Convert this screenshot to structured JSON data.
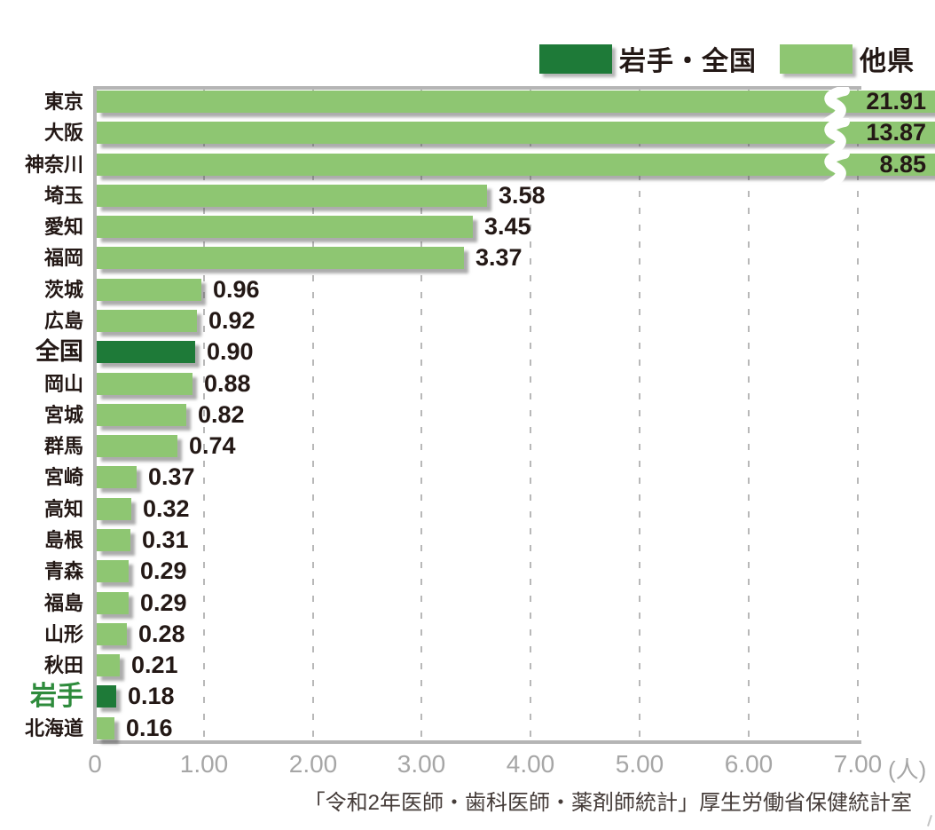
{
  "chart_data": {
    "type": "bar",
    "orientation": "horizontal",
    "title": "",
    "categories": [
      "東京",
      "大阪",
      "神奈川",
      "埼玉",
      "愛知",
      "福岡",
      "茨城",
      "広島",
      "全国",
      "岡山",
      "宮城",
      "群馬",
      "宮崎",
      "高知",
      "島根",
      "青森",
      "福島",
      "山形",
      "秋田",
      "岩手",
      "北海道"
    ],
    "values": [
      21.91,
      13.87,
      8.85,
      3.58,
      3.45,
      3.37,
      0.96,
      0.92,
      0.9,
      0.88,
      0.82,
      0.74,
      0.37,
      0.32,
      0.31,
      0.29,
      0.29,
      0.28,
      0.21,
      0.18,
      0.16
    ],
    "value_labels": [
      "21.91",
      "13.87",
      "8.85",
      "3.58",
      "3.45",
      "3.37",
      "0.96",
      "0.92",
      "0.90",
      "0.88",
      "0.82",
      "0.74",
      "0.37",
      "0.32",
      "0.31",
      "0.29",
      "0.29",
      "0.28",
      "0.21",
      "0.18",
      "0.16"
    ],
    "dark_bar_indices": [
      8,
      19
    ],
    "axis_break_indices": [
      0,
      1,
      2
    ],
    "emphasized_label_indices": {
      "black": [
        8
      ],
      "green": [
        19
      ]
    },
    "xlim": [
      0,
      7
    ],
    "xticks": [
      "0",
      "1.00",
      "2.00",
      "3.00",
      "4.00",
      "5.00",
      "6.00",
      "7.00"
    ],
    "x_unit": "(人)",
    "grid": {
      "style": "dashed-vertical",
      "color": "#b8b8b8"
    },
    "legend": [
      {
        "label": "岩手・全国",
        "color": "#1e7a38"
      },
      {
        "label": "他県",
        "color": "#8ec672"
      }
    ],
    "source": "「令和2年医師・歯科医師・薬剤師統計」厚生労働省保健統計室",
    "colors": {
      "bar_light": "#8ec672",
      "bar_dark": "#1e7a38",
      "axis": "#b5b5b5",
      "tick_text": "#a6a6a6",
      "label_text": "#231815",
      "iwate_label_text": "#2e8b3c",
      "source_text": "#453c39"
    }
  }
}
